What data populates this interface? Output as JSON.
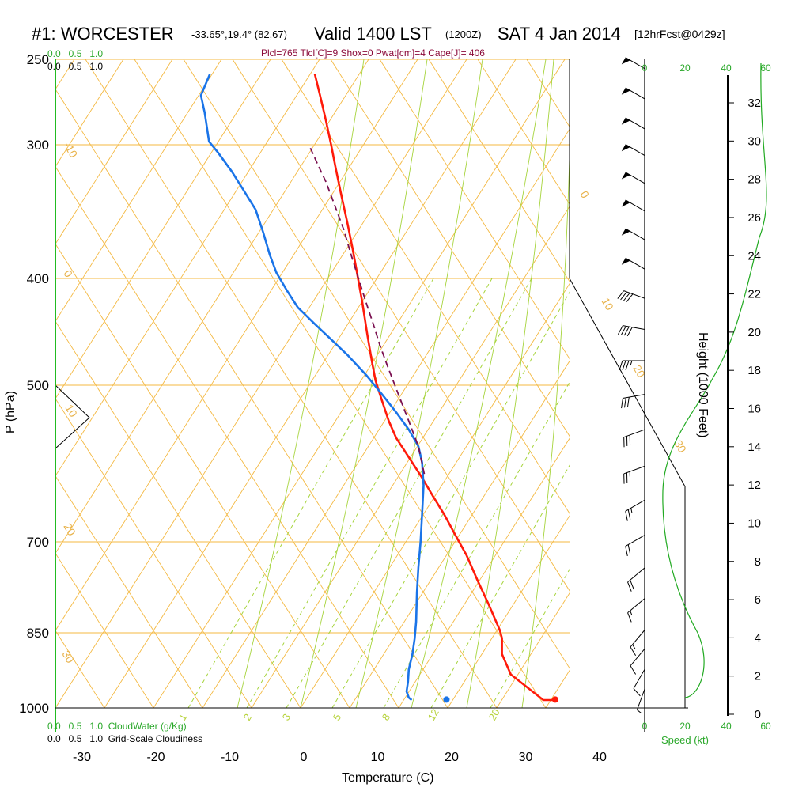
{
  "title": {
    "station": "#1: WORCESTER",
    "coords": "-33.65°,19.4° (82,67)",
    "valid": "Valid 1400 LST",
    "utc": "(1200Z)",
    "date": "SAT 4 Jan 2014",
    "forecast": "[12hrFcst@0429z]"
  },
  "params_text": "Plcl=765 Tlcl[C]=9 Shox=0 Pwat[cm]=4 Cape[J]= 406",
  "legends": {
    "top_green": "0.0   0.5   1.0",
    "top_black": "0.0   0.5   1.0",
    "bottom_green": "0.0   0.5   1.0  CloudWater (g/Kg)",
    "bottom_black": "0.0   0.5   1.0  Grid-Scale Cloudiness",
    "speed_label": "Speed (kt)"
  },
  "colors": {
    "temperature": "#ff1a0a",
    "dewpoint": "#1a74e8",
    "parcel": "#7a1050",
    "isotherm": "#f4b942",
    "dry_adiabat": "#f4b942",
    "mixing_ratio": "#a6d43c",
    "moist_adiabat": "#a6d43c",
    "height_profile": "#22aa22",
    "axis_green": "#1fbf1f"
  },
  "chart_data": {
    "type": "line",
    "title": "#1: WORCESTER",
    "xlabel": "Temperature (C)",
    "ylabel": "P (hPa)",
    "y2label": "Height (1000 Feet)",
    "xlim": [
      -35,
      51
    ],
    "ylim": [
      1000,
      250
    ],
    "y_scale": "log",
    "x_ticks": [
      -30,
      -20,
      -10,
      0,
      10,
      20,
      30,
      40
    ],
    "pressure_levels": [
      250,
      300,
      400,
      500,
      700,
      850,
      1000
    ],
    "height_ticks": [
      0,
      2,
      4,
      6,
      8,
      10,
      12,
      14,
      16,
      18,
      20,
      22,
      24,
      26,
      28,
      30,
      32
    ],
    "speed_ticks": [
      0,
      20,
      40,
      60
    ],
    "dry_adiabat_labels": [
      "-10",
      "0",
      "10",
      "20",
      "30",
      "0",
      "10",
      "20",
      "30"
    ],
    "mixing_ratio_labels": [
      "1",
      "2",
      "3",
      "5",
      "8",
      "12",
      "20"
    ],
    "series": [
      {
        "name": "Temperature",
        "points": [
          [
            34.0,
            983
          ],
          [
            32.4,
            983
          ],
          [
            28.0,
            930
          ],
          [
            26.8,
            890
          ],
          [
            26.8,
            860
          ],
          [
            26.5,
            845
          ],
          [
            25.0,
            800
          ],
          [
            23.5,
            760
          ],
          [
            22.0,
            720
          ],
          [
            20.5,
            690
          ],
          [
            19.0,
            660
          ],
          [
            17.5,
            635
          ],
          [
            16.0,
            610
          ],
          [
            14.3,
            585
          ],
          [
            12.5,
            560
          ],
          [
            11.5,
            540
          ],
          [
            10.5,
            515
          ],
          [
            9.7,
            495
          ],
          [
            9.2,
            475
          ],
          [
            8.6,
            450
          ],
          [
            7.9,
            420
          ],
          [
            7.2,
            395
          ],
          [
            6.6,
            375
          ],
          [
            5.9,
            355
          ],
          [
            5.1,
            335
          ],
          [
            4.3,
            315
          ],
          [
            3.7,
            300
          ],
          [
            3.0,
            285
          ],
          [
            2.2,
            270
          ],
          [
            1.5,
            258
          ]
        ]
      },
      {
        "name": "Dew Point",
        "points": [
          [
            14.6,
            983
          ],
          [
            14.2,
            978
          ],
          [
            13.9,
            965
          ],
          [
            14.1,
            945
          ],
          [
            14.2,
            920
          ],
          [
            14.7,
            890
          ],
          [
            15.0,
            860
          ],
          [
            15.2,
            830
          ],
          [
            15.3,
            780
          ],
          [
            15.5,
            740
          ],
          [
            15.8,
            700
          ],
          [
            16.0,
            660
          ],
          [
            16.2,
            620
          ],
          [
            16.0,
            590
          ],
          [
            15.5,
            570
          ],
          [
            14.2,
            550
          ],
          [
            12.5,
            530
          ],
          [
            10.6,
            510
          ],
          [
            8.5,
            490
          ],
          [
            6.0,
            470
          ],
          [
            3.8,
            455
          ],
          [
            1.5,
            440
          ],
          [
            -0.8,
            425
          ],
          [
            -2.3,
            410
          ],
          [
            -3.7,
            395
          ],
          [
            -4.6,
            380
          ],
          [
            -5.5,
            362
          ],
          [
            -6.5,
            345
          ],
          [
            -8.0,
            332
          ],
          [
            -9.7,
            318
          ],
          [
            -11.6,
            305
          ],
          [
            -12.8,
            298
          ],
          [
            -13.4,
            280
          ],
          [
            -13.9,
            270
          ],
          [
            -12.7,
            258
          ]
        ]
      },
      {
        "name": "Parcel",
        "points": [
          [
            16.3,
            605
          ],
          [
            15.5,
            570
          ],
          [
            14.2,
            540
          ],
          [
            12.8,
            510
          ],
          [
            11.3,
            480
          ],
          [
            10.3,
            460
          ],
          [
            9.4,
            440
          ],
          [
            8.4,
            420
          ],
          [
            7.4,
            400
          ],
          [
            6.4,
            380
          ],
          [
            5.4,
            360
          ],
          [
            4.2,
            342
          ],
          [
            3.0,
            325
          ],
          [
            1.8,
            312
          ],
          [
            0.7,
            300
          ]
        ]
      },
      {
        "name": "Dew point (surface)",
        "points": [
          [
            19.3,
            982
          ]
        ]
      },
      {
        "name": "Temperature (surface)",
        "points": [
          [
            34.0,
            982
          ]
        ]
      }
    ],
    "wind_barbs": {
      "levels_hpa": [
        255,
        272,
        290,
        307,
        326,
        346,
        368,
        392,
        417,
        445,
        475,
        510,
        550,
        595,
        640,
        690,
        740,
        790,
        845,
        880,
        920,
        960
      ],
      "direction_deg": [
        300,
        300,
        300,
        300,
        300,
        300,
        300,
        300,
        290,
        280,
        270,
        260,
        250,
        250,
        240,
        240,
        230,
        230,
        220,
        220,
        210,
        200
      ],
      "speed_kt": [
        50,
        50,
        50,
        50,
        50,
        50,
        50,
        50,
        40,
        40,
        35,
        30,
        30,
        25,
        25,
        20,
        20,
        15,
        15,
        10,
        10,
        5
      ]
    }
  }
}
